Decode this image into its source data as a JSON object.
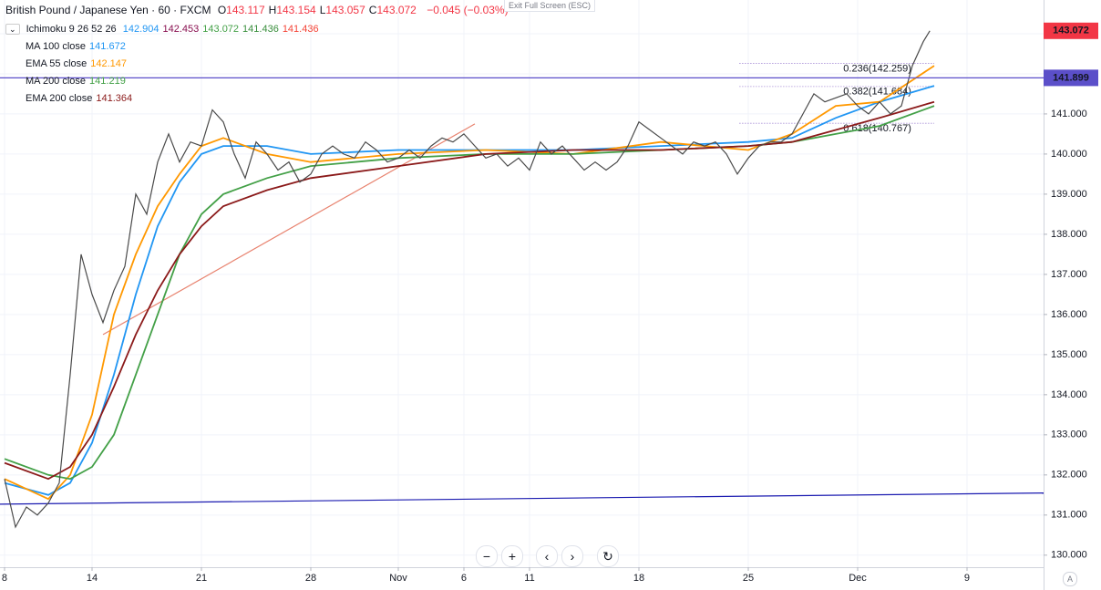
{
  "chart_data": {
    "type": "line",
    "title": "British Pound / Japanese Yen · 60 · FXCM",
    "ohlc": [
      {
        "label": "O",
        "value": 143.117
      },
      {
        "label": "H",
        "value": 143.154
      },
      {
        "label": "L",
        "value": 143.057
      },
      {
        "label": "C",
        "value": 143.072
      }
    ],
    "change": "−0.045 (−0.03%)",
    "ichimoku": {
      "name": "Ichimoku 9 26 52 26",
      "values": [
        142.904,
        142.453,
        143.072,
        141.436,
        141.436
      ],
      "colors": [
        "#2196f3",
        "#880e4f",
        "#43a047",
        "#388e3c",
        "#f44336"
      ]
    },
    "exit_button": "Exit Full Screen (ESC)",
    "corner_label": "A",
    "xlim": [
      -0.208,
      47.5
    ],
    "ylim": [
      129.7,
      143.84
    ],
    "xticks": [
      {
        "value": 0,
        "label": "8"
      },
      {
        "value": 4,
        "label": "14"
      },
      {
        "value": 9,
        "label": "21"
      },
      {
        "value": 14,
        "label": "28"
      },
      {
        "value": 18,
        "label": "Nov"
      },
      {
        "value": 21,
        "label": "6"
      },
      {
        "value": 24,
        "label": "11"
      },
      {
        "value": 29,
        "label": "18"
      },
      {
        "value": 34,
        "label": "25"
      },
      {
        "value": 39,
        "label": "Dec"
      },
      {
        "value": 44,
        "label": "9"
      }
    ],
    "yticks": [
      {
        "value": 130,
        "label": "130.000"
      },
      {
        "value": 131,
        "label": "131.000"
      },
      {
        "value": 132,
        "label": "132.000"
      },
      {
        "value": 133,
        "label": "133.000"
      },
      {
        "value": 134,
        "label": "134.000"
      },
      {
        "value": 135,
        "label": "135.000"
      },
      {
        "value": 136,
        "label": "136.000"
      },
      {
        "value": 137,
        "label": "137.000"
      },
      {
        "value": 138,
        "label": "138.000"
      },
      {
        "value": 139,
        "label": "139.000"
      },
      {
        "value": 140,
        "label": "140.000"
      },
      {
        "value": 141,
        "label": "141.000"
      },
      {
        "value": 142,
        "label": "142.000"
      },
      {
        "value": 143,
        "label": "143.000"
      }
    ],
    "grid": true,
    "price": {
      "color": "#4a4a4a",
      "x": [
        0,
        0.5,
        1,
        1.5,
        2,
        2.5,
        3,
        3.5,
        4,
        4.5,
        5,
        5.5,
        6,
        6.5,
        7,
        7.5,
        8,
        8.5,
        9,
        9.5,
        10,
        10.5,
        11,
        11.5,
        12,
        12.5,
        13,
        13.5,
        14,
        14.5,
        15,
        15.5,
        16,
        16.5,
        17,
        17.5,
        18,
        18.5,
        19,
        19.5,
        20,
        20.5,
        21,
        21.5,
        22,
        22.5,
        23,
        23.5,
        24,
        24.5,
        25,
        25.5,
        26,
        26.5,
        27,
        27.5,
        28,
        28.5,
        29,
        29.5,
        30,
        30.5,
        31,
        31.5,
        32,
        32.5,
        33,
        33.5,
        34,
        34.5,
        35,
        35.5,
        36,
        36.5,
        37,
        37.5,
        38,
        38.5,
        39,
        39.5,
        40,
        40.5,
        41,
        41.5,
        42,
        42.3
      ],
      "values": [
        131.9,
        130.7,
        131.2,
        131.0,
        131.3,
        131.8,
        134.5,
        137.5,
        136.5,
        135.8,
        136.6,
        137.2,
        139.0,
        138.5,
        139.8,
        140.5,
        139.8,
        140.3,
        140.2,
        141.1,
        140.8,
        140.0,
        139.4,
        140.3,
        140.0,
        139.6,
        139.8,
        139.3,
        139.5,
        140.0,
        140.2,
        140.0,
        139.9,
        140.3,
        140.1,
        139.8,
        139.9,
        140.1,
        139.9,
        140.2,
        140.4,
        140.3,
        140.5,
        140.2,
        139.9,
        140.0,
        139.7,
        139.9,
        139.6,
        140.3,
        140.0,
        140.2,
        139.9,
        139.6,
        139.8,
        139.6,
        139.8,
        140.2,
        140.8,
        140.6,
        140.4,
        140.2,
        140.0,
        140.3,
        140.2,
        140.3,
        140.0,
        139.5,
        139.9,
        140.2,
        140.3,
        140.3,
        140.5,
        141.0,
        141.5,
        141.3,
        141.4,
        141.5,
        141.2,
        141.0,
        141.3,
        141.0,
        141.2,
        142.2,
        142.8,
        143.072
      ]
    },
    "series": [
      {
        "name": "MA 100 close",
        "last": 141.672,
        "color": "#2196f3",
        "x": [
          0,
          2,
          3,
          4,
          5,
          6,
          7,
          8,
          9,
          10,
          12,
          14,
          18,
          22,
          26,
          30,
          34,
          36,
          38,
          40,
          42.5
        ],
        "values": [
          131.8,
          131.5,
          131.8,
          132.8,
          134.5,
          136.5,
          138.2,
          139.3,
          140.0,
          140.2,
          140.2,
          140.0,
          140.1,
          140.1,
          140.1,
          140.2,
          140.3,
          140.4,
          140.9,
          141.3,
          141.7
        ]
      },
      {
        "name": "EMA 55 close",
        "last": 142.147,
        "color": "#ff9800",
        "x": [
          0,
          2,
          3,
          4,
          5,
          6,
          7,
          8,
          9,
          10,
          12,
          14,
          18,
          22,
          26,
          30,
          34,
          36,
          38,
          40,
          42.5
        ],
        "values": [
          131.9,
          131.4,
          132.0,
          133.5,
          136.0,
          137.5,
          138.7,
          139.5,
          140.2,
          140.4,
          140.0,
          139.8,
          140.0,
          140.1,
          140.0,
          140.3,
          140.1,
          140.5,
          141.2,
          141.3,
          142.2
        ]
      },
      {
        "name": "MA 200 close",
        "last": 141.219,
        "color": "#43a047",
        "x": [
          0,
          2,
          3,
          4,
          5,
          6,
          7,
          8,
          9,
          10,
          12,
          14,
          18,
          22,
          26,
          30,
          34,
          36,
          38,
          40,
          42.5
        ],
        "values": [
          132.4,
          132.0,
          131.9,
          132.2,
          133.0,
          134.5,
          136.0,
          137.5,
          138.5,
          139.0,
          139.4,
          139.7,
          139.9,
          140.0,
          140.0,
          140.1,
          140.2,
          140.3,
          140.5,
          140.7,
          141.2
        ]
      },
      {
        "name": "EMA 200 close",
        "last": 141.364,
        "color": "#8b1a1a",
        "x": [
          0,
          2,
          3,
          4,
          5,
          6,
          7,
          8,
          9,
          10,
          12,
          14,
          18,
          22,
          26,
          30,
          34,
          36,
          38,
          40,
          42.5
        ],
        "values": [
          132.3,
          131.9,
          132.2,
          133.0,
          134.2,
          135.5,
          136.6,
          137.5,
          138.2,
          138.7,
          139.1,
          139.4,
          139.7,
          140.0,
          140.1,
          140.1,
          140.2,
          140.3,
          140.6,
          140.9,
          141.3
        ]
      }
    ],
    "trendlines": [
      {
        "color": "#1a1ab0",
        "x": [
          -0.208,
          47.5
        ],
        "values": [
          131.27,
          131.55
        ]
      },
      {
        "color": "#e8836f",
        "x": [
          4.5,
          21.5
        ],
        "values": [
          135.5,
          140.75
        ]
      }
    ],
    "price_lines": [
      {
        "value": 141.899,
        "color": "#5b4fc9"
      },
      {
        "value": 143.072,
        "color": "#f23645"
      }
    ],
    "fib_levels": [
      {
        "label": "0.236(142.259)",
        "value": 142.259
      },
      {
        "label": "0.382(141.684)",
        "value": 141.684
      },
      {
        "label": "0.618(140.767)",
        "value": 140.767
      }
    ]
  }
}
